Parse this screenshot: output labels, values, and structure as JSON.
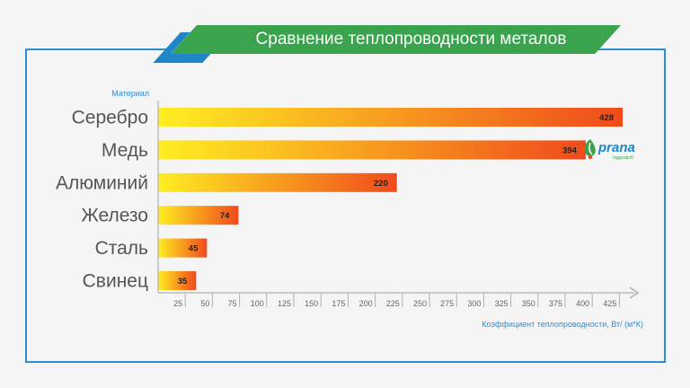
{
  "title": "Сравнение теплопроводности металов",
  "logo_text": "prana",
  "logo_sub": "гидрофоб",
  "colors": {
    "frame": "#2b8fd6",
    "banner": "#3aa34d",
    "banner_accent": "#1f87c7",
    "bar_start": "#ffee22",
    "bar_end": "#f04a1c",
    "axis": "#b0b0b0",
    "label": "#555555",
    "axis_label": "#2b8fd6"
  },
  "chart_data": {
    "type": "bar",
    "orientation": "horizontal",
    "title": "Сравнение теплопроводности металов",
    "ylabel": "Материал",
    "xlabel": "Коэффициент теплопроводности, Вт/ (м*К)",
    "categories": [
      "Серебро",
      "Медь",
      "Алюминий",
      "Железо",
      "Сталь",
      "Свинец"
    ],
    "values": [
      428,
      394,
      220,
      74,
      45,
      35
    ],
    "data_labels": [
      "428",
      "394",
      "220",
      "74",
      "45",
      "35"
    ],
    "xticks": [
      "25",
      "50",
      "75",
      "100",
      "125",
      "150",
      "175",
      "200",
      "225",
      "250",
      "275",
      "300",
      "325",
      "350",
      "375",
      "400",
      "425"
    ],
    "xlim": [
      0,
      448
    ],
    "grid": false,
    "legend": "none"
  }
}
